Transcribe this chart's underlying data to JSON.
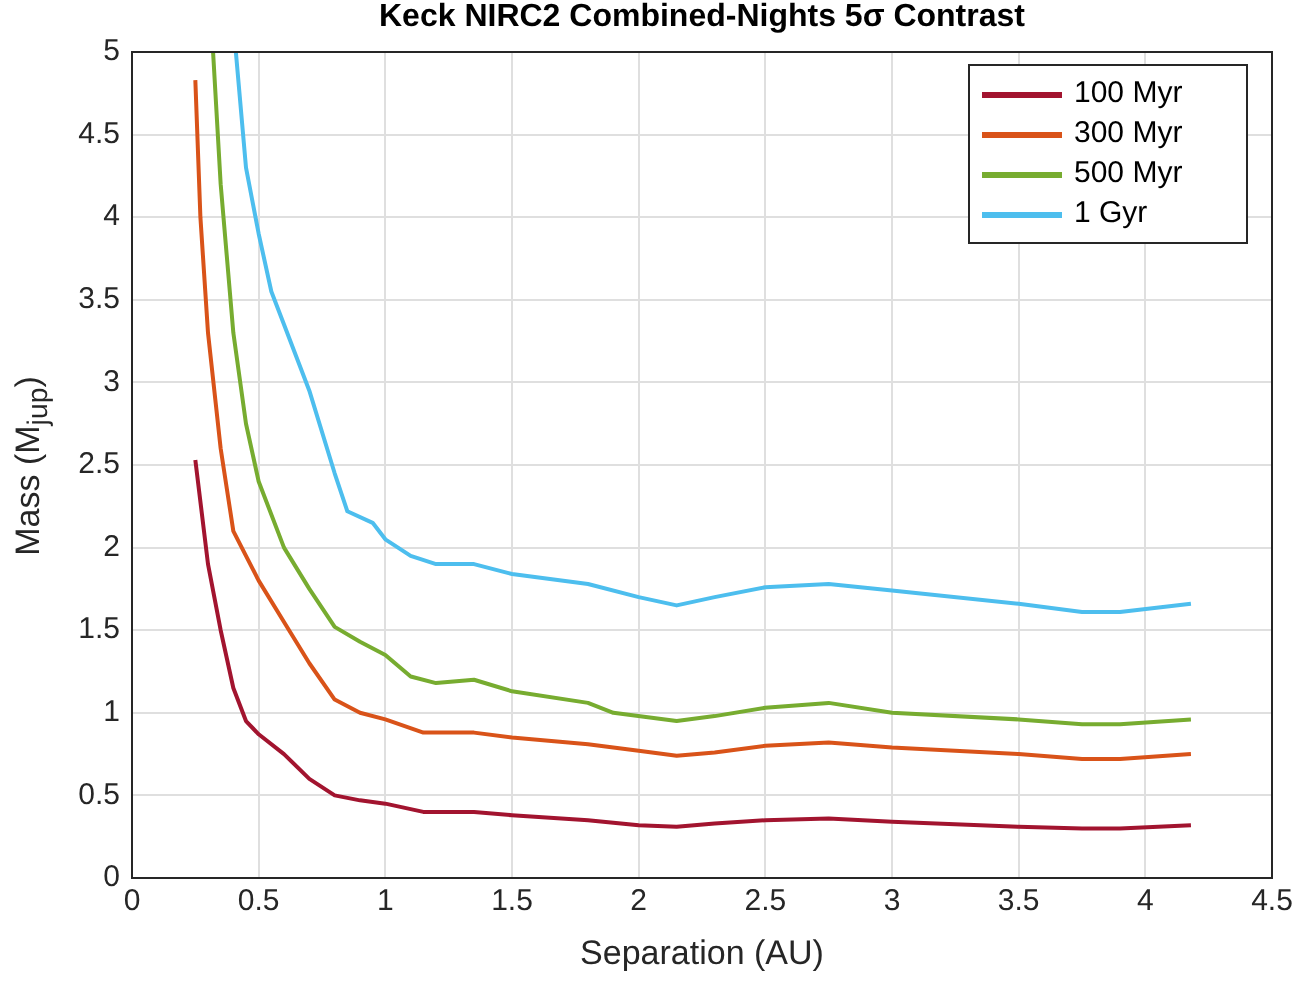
{
  "chart_data": {
    "type": "line",
    "title": "Keck NIRC2 Combined-Nights 5σ Contrast",
    "xlabel": "Separation (AU)",
    "ylabel": "Mass (M$_{jup}$)",
    "xlim": [
      0,
      4.5
    ],
    "xticks": [
      0,
      0.5,
      1,
      1.5,
      2,
      2.5,
      3,
      3.5,
      4,
      4.5
    ],
    "ylim": [
      0,
      5
    ],
    "yticks": [
      0,
      0.5,
      1,
      1.5,
      2,
      2.5,
      3,
      3.5,
      4,
      4.5,
      5
    ],
    "grid": true,
    "legend": "top right",
    "marker": "none",
    "line_style": "solid",
    "series": [
      {
        "name": "100 Myr",
        "color": "#a2142f",
        "x": [
          0.25,
          0.3,
          0.35,
          0.4,
          0.45,
          0.5,
          0.6,
          0.7,
          0.8,
          0.9,
          1.0,
          1.15,
          1.35,
          1.5,
          1.8,
          2.0,
          2.15,
          2.3,
          2.5,
          2.75,
          3.0,
          3.5,
          3.75,
          3.9,
          4.18
        ],
        "values": [
          2.53,
          1.9,
          1.5,
          1.15,
          0.95,
          0.87,
          0.75,
          0.6,
          0.5,
          0.47,
          0.45,
          0.4,
          0.4,
          0.38,
          0.35,
          0.32,
          0.31,
          0.33,
          0.35,
          0.36,
          0.34,
          0.31,
          0.3,
          0.3,
          0.32
        ]
      },
      {
        "name": "300 Myr",
        "color": "#d95319",
        "x": [
          0.25,
          0.27,
          0.3,
          0.35,
          0.4,
          0.45,
          0.5,
          0.6,
          0.7,
          0.8,
          0.9,
          1.0,
          1.15,
          1.35,
          1.5,
          1.8,
          2.0,
          2.15,
          2.3,
          2.5,
          2.75,
          3.0,
          3.5,
          3.75,
          3.9,
          4.18
        ],
        "values": [
          4.83,
          4.0,
          3.3,
          2.6,
          2.1,
          1.95,
          1.8,
          1.55,
          1.3,
          1.08,
          1.0,
          0.96,
          0.88,
          0.88,
          0.85,
          0.81,
          0.77,
          0.74,
          0.76,
          0.8,
          0.82,
          0.79,
          0.75,
          0.72,
          0.72,
          0.75
        ]
      },
      {
        "name": "500 Myr",
        "color": "#77ac30",
        "x": [
          0.32,
          0.35,
          0.4,
          0.45,
          0.5,
          0.6,
          0.7,
          0.8,
          0.9,
          1.0,
          1.1,
          1.2,
          1.35,
          1.5,
          1.8,
          1.9,
          2.15,
          2.3,
          2.5,
          2.75,
          3.0,
          3.5,
          3.75,
          3.9,
          4.18
        ],
        "values": [
          5,
          4.2,
          3.3,
          2.75,
          2.4,
          2.0,
          1.75,
          1.52,
          1.43,
          1.35,
          1.22,
          1.18,
          1.2,
          1.13,
          1.06,
          1.0,
          0.95,
          0.98,
          1.03,
          1.06,
          1.0,
          0.96,
          0.93,
          0.93,
          0.96
        ]
      },
      {
        "name": "1 Gyr",
        "color": "#4dbeee",
        "x": [
          0.41,
          0.45,
          0.5,
          0.55,
          0.6,
          0.7,
          0.8,
          0.85,
          0.95,
          1.0,
          1.1,
          1.2,
          1.35,
          1.5,
          1.8,
          2.0,
          2.15,
          2.3,
          2.5,
          2.75,
          3.0,
          3.5,
          3.75,
          3.9,
          4.18
        ],
        "values": [
          5,
          4.3,
          3.9,
          3.55,
          3.35,
          2.95,
          2.45,
          2.22,
          2.15,
          2.05,
          1.95,
          1.9,
          1.9,
          1.84,
          1.78,
          1.7,
          1.65,
          1.7,
          1.76,
          1.78,
          1.74,
          1.66,
          1.61,
          1.61,
          1.66
        ]
      }
    ]
  }
}
